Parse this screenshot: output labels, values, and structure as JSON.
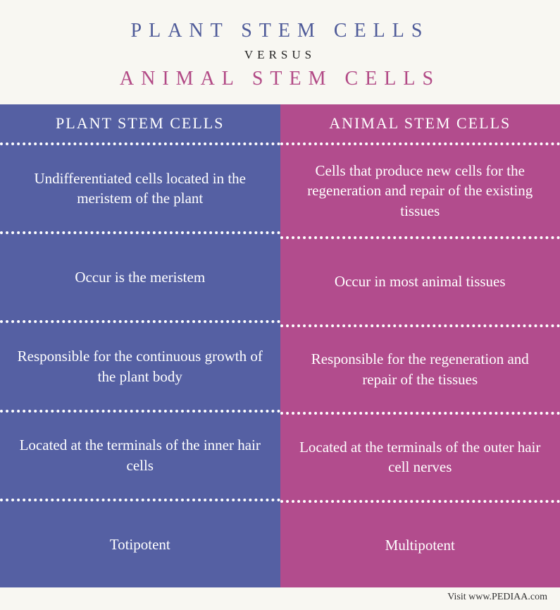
{
  "header": {
    "title_top": "PLANT STEM CELLS",
    "versus": "VERSUS",
    "title_bottom": "ANIMAL STEM CELLS",
    "title_top_color": "#4f5b99",
    "title_bottom_color": "#b24a86"
  },
  "columns": {
    "left": {
      "bg_color": "#5560a3",
      "header": "PLANT STEM CELLS",
      "rows": [
        "Undifferentiated cells located in the meristem of the plant",
        "Occur is the meristem",
        "Responsible for the continuous growth of the plant body",
        "Located at the terminals of the inner hair cells",
        "Totipotent"
      ]
    },
    "right": {
      "bg_color": "#b24c8d",
      "header": "ANIMAL STEM CELLS",
      "rows": [
        "Cells that produce new cells for the regeneration and repair of the existing tissues",
        "Occur in most animal tissues",
        "Responsible for the regeneration and repair of the tissues",
        "Located at the terminals of the outer hair cell nerves",
        "Multipotent"
      ]
    }
  },
  "footer": "Visit www.PEDIAA.com"
}
